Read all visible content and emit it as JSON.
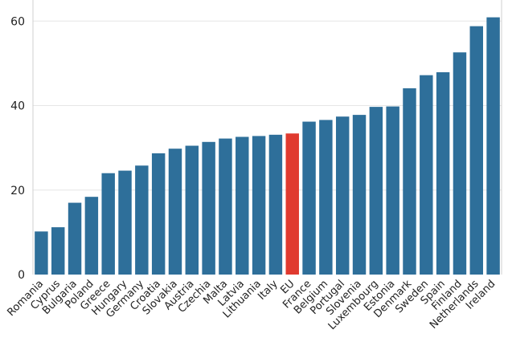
{
  "chart_data": {
    "type": "bar",
    "title": "",
    "xlabel": "",
    "ylabel": "",
    "ylim": [
      0,
      65
    ],
    "yticks": [
      0,
      20,
      40,
      60
    ],
    "grid": "horizontal",
    "colors": {
      "default": "#2e6f9a",
      "highlight": "#e03a2f"
    },
    "highlight": "EU",
    "categories": [
      "Romania",
      "Cyprus",
      "Bulgaria",
      "Poland",
      "Greece",
      "Hungary",
      "Germany",
      "Croatia",
      "Slovakia",
      "Austria",
      "Czechia",
      "Malta",
      "Latvia",
      "Lithuania",
      "Italy",
      "EU",
      "France",
      "Belgium",
      "Portugal",
      "Slovenia",
      "Luxembourg",
      "Estonia",
      "Denmark",
      "Sweden",
      "Spain",
      "Finland",
      "Netherlands",
      "Ireland"
    ],
    "values": [
      10.2,
      11.2,
      17.0,
      18.4,
      24.0,
      24.6,
      25.8,
      28.7,
      29.8,
      30.5,
      31.4,
      32.2,
      32.6,
      32.8,
      33.1,
      33.4,
      36.2,
      36.6,
      37.4,
      37.8,
      39.7,
      39.8,
      44.1,
      47.2,
      47.9,
      52.6,
      58.8,
      60.9
    ]
  }
}
